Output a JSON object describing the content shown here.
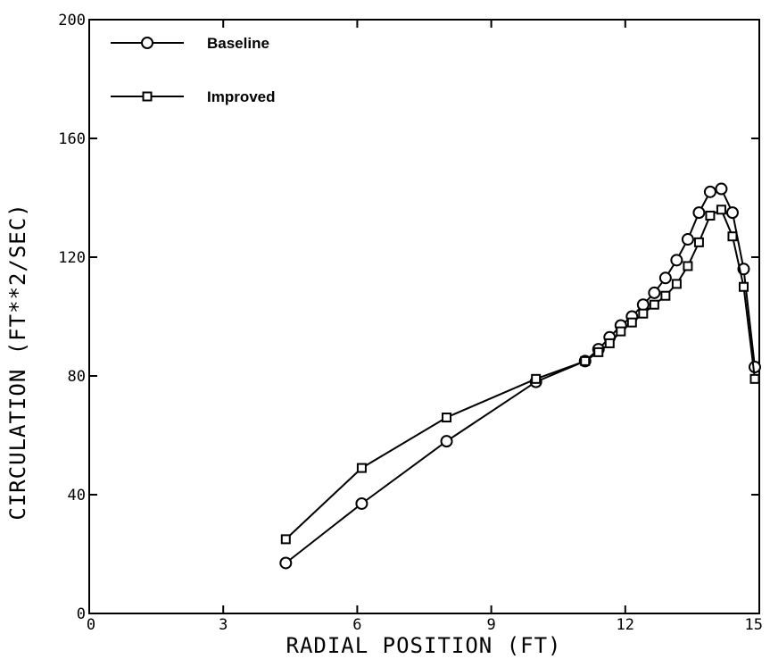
{
  "chart_data": {
    "type": "line",
    "xlabel": "RADIAL POSITION (FT)",
    "ylabel": "CIRCULATION (FT**2/SEC)",
    "xlim": [
      0,
      15
    ],
    "ylim": [
      0,
      200
    ],
    "xticks": [
      0,
      3,
      6,
      9,
      12,
      15
    ],
    "yticks": [
      0,
      40,
      80,
      120,
      160,
      200
    ],
    "xtick_labels": [
      "0",
      "3",
      "6",
      "9",
      "12",
      "15"
    ],
    "ytick_labels": [
      "0",
      "40",
      "80",
      "120",
      "160",
      "200"
    ],
    "grid": false,
    "legend_position": "top-left",
    "series": [
      {
        "name": "Baseline",
        "marker": "circle",
        "x": [
          4.4,
          6.1,
          8.0,
          10.0,
          11.1,
          11.4,
          11.65,
          11.9,
          12.15,
          12.4,
          12.65,
          12.9,
          13.15,
          13.4,
          13.65,
          13.9,
          14.15,
          14.4,
          14.65,
          14.9
        ],
        "y": [
          17,
          37,
          58,
          78,
          85,
          89,
          93,
          97,
          100,
          104,
          108,
          113,
          119,
          126,
          135,
          142,
          143,
          135,
          116,
          83
        ]
      },
      {
        "name": "Improved",
        "marker": "square",
        "x": [
          4.4,
          6.1,
          8.0,
          10.0,
          11.1,
          11.4,
          11.65,
          11.9,
          12.15,
          12.4,
          12.65,
          12.9,
          13.15,
          13.4,
          13.65,
          13.9,
          14.15,
          14.4,
          14.65,
          14.9
        ],
        "y": [
          25,
          49,
          66,
          79,
          85,
          88,
          91,
          95,
          98,
          101,
          104,
          107,
          111,
          117,
          125,
          134,
          136,
          127,
          110,
          79
        ]
      }
    ]
  }
}
